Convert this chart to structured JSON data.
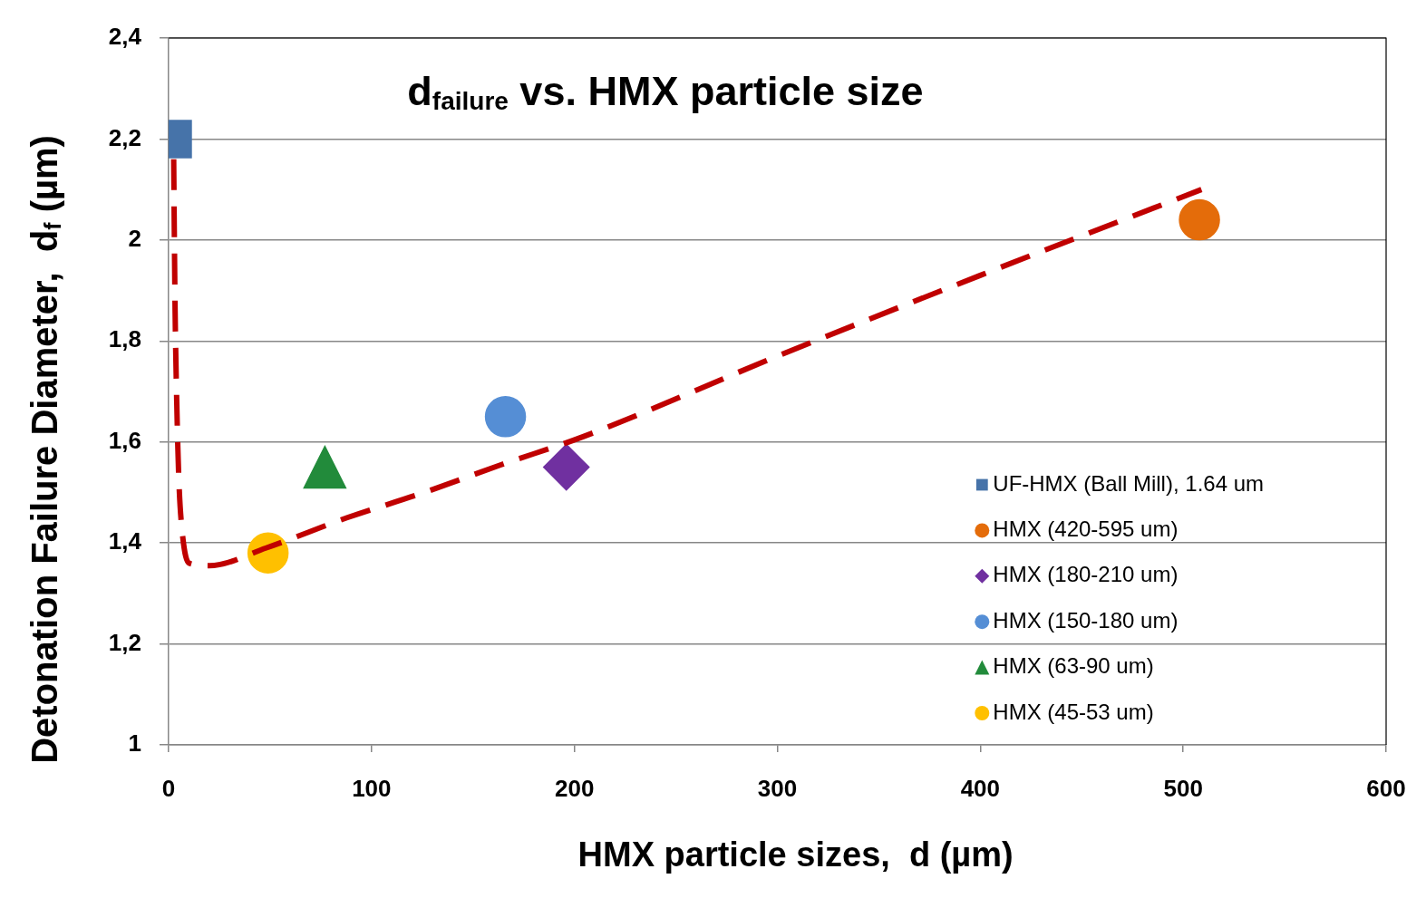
{
  "chart_data": {
    "type": "scatter",
    "title": "d$_{failure}$ vs. HMX particle size",
    "xlabel": "HMX particle sizes,  d (µm)",
    "ylabel": "Detonation Failure Diameter,  d$_{f}$ (µm)",
    "xlim": [
      0,
      600
    ],
    "xticks": [
      0,
      100,
      200,
      300,
      400,
      500,
      600
    ],
    "ylim": [
      1,
      2.4
    ],
    "yticks": [
      1,
      {
        "value": 1.2,
        "label": "1,2"
      },
      {
        "value": 1.4,
        "label": "1,4"
      },
      {
        "value": 1.6,
        "label": "1,6"
      },
      {
        "value": 1.8,
        "label": "1,8"
      },
      2,
      {
        "value": 2.2,
        "label": "2,2"
      },
      {
        "value": 2.4,
        "label": "2,4"
      }
    ],
    "grid": "y",
    "legend": "bottom right",
    "series": [
      {
        "name": "UF-HMX (Ball Mill), 1.64 um",
        "type": "scatter",
        "marker": "square",
        "color": "#4673a9",
        "x": [
          2
        ],
        "values": [
          2.2
        ]
      },
      {
        "name": "HMX (420-595 um)",
        "type": "scatter",
        "marker": "circle",
        "color": "#e46c0a",
        "x": [
          508
        ],
        "values": [
          2.04
        ]
      },
      {
        "name": "HMX (180-210 um)",
        "type": "scatter",
        "marker": "diamond",
        "color": "#7030a0",
        "x": [
          196
        ],
        "values": [
          1.55
        ]
      },
      {
        "name": "HMX (150-180 um)",
        "type": "scatter",
        "marker": "circle",
        "color": "#558ed5",
        "x": [
          166
        ],
        "values": [
          1.65
        ]
      },
      {
        "name": "HMX (63-90 um)",
        "type": "scatter",
        "marker": "triangle",
        "color": "#228b3b",
        "x": [
          77
        ],
        "values": [
          1.55
        ]
      },
      {
        "name": "HMX (45-53 um)",
        "type": "scatter",
        "marker": "circle",
        "color": "#ffc000",
        "x": [
          49
        ],
        "values": [
          1.38
        ]
      },
      {
        "type": "line",
        "marker": "none",
        "line_style": "dashed",
        "color": "#c00000",
        "x": [
          2.5,
          2.8,
          3.2,
          4,
          5,
          6.5,
          10,
          20,
          48,
          88,
          126,
          164,
          204,
          300,
          400,
          509
        ],
        "values": [
          2.16,
          2.02,
          1.86,
          1.68,
          1.53,
          1.43,
          1.36,
          1.355,
          1.39,
          1.45,
          1.5,
          1.555,
          1.61,
          1.77,
          1.93,
          2.1
        ]
      }
    ]
  }
}
